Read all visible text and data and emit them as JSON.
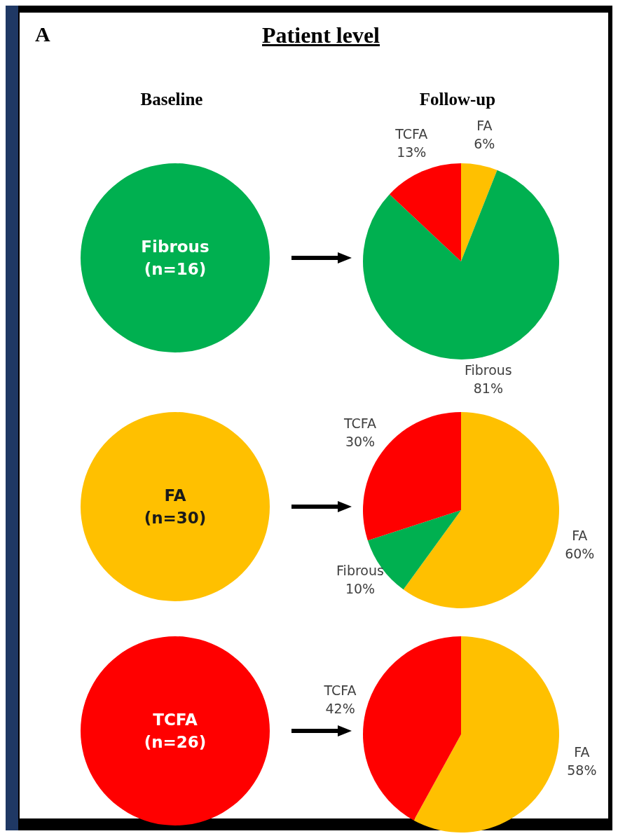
{
  "chart_data": [
    {
      "type": "pie",
      "title": "Patient level",
      "subtitle": "Baseline",
      "annotations": [
        "A"
      ],
      "categories": [
        "Fibrous (n=16)"
      ],
      "values": [
        100
      ],
      "colors": [
        "#00b050"
      ]
    },
    {
      "type": "pie",
      "subtitle": "Follow-up",
      "categories": [
        "FA",
        "Fibrous",
        "TCFA"
      ],
      "values": [
        6,
        81,
        13
      ],
      "colors": [
        "#ffc000",
        "#00b050",
        "#ff0000"
      ],
      "value_labels": [
        "6%",
        "81%",
        "13%"
      ]
    },
    {
      "type": "pie",
      "categories": [
        "FA (n=30)"
      ],
      "values": [
        100
      ],
      "colors": [
        "#ffc000"
      ]
    },
    {
      "type": "pie",
      "categories": [
        "FA",
        "Fibrous",
        "TCFA"
      ],
      "values": [
        60,
        10,
        30
      ],
      "colors": [
        "#ffc000",
        "#00b050",
        "#ff0000"
      ],
      "value_labels": [
        "60%",
        "10%",
        "30%"
      ]
    },
    {
      "type": "pie",
      "categories": [
        "TCFA (n=26)"
      ],
      "values": [
        100
      ],
      "colors": [
        "#ff0000"
      ]
    },
    {
      "type": "pie",
      "categories": [
        "FA",
        "TCFA"
      ],
      "values": [
        58,
        42
      ],
      "colors": [
        "#ffc000",
        "#ff0000"
      ],
      "value_labels": [
        "58%",
        "42%"
      ]
    }
  ]
}
